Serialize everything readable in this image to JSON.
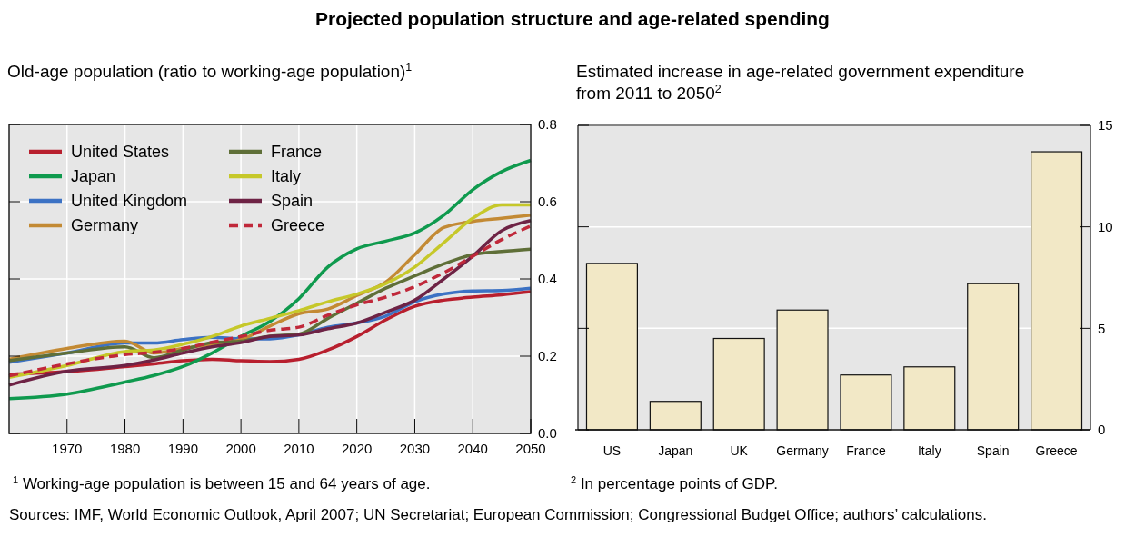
{
  "chart_data": [
    {
      "type": "line",
      "title": "Projected population structure and age-related spending",
      "subtitle": "Old-age population (ratio to working-age population)$^{1}$",
      "x": [
        1960,
        1970,
        1980,
        1985,
        1990,
        1995,
        2000,
        2005,
        2010,
        2015,
        2020,
        2025,
        2030,
        2035,
        2040,
        2045,
        2050
      ],
      "xlim": [
        1960,
        2050
      ],
      "xticks": [
        1970,
        1980,
        1990,
        2000,
        2010,
        2020,
        2030,
        2040,
        2050
      ],
      "ylim": [
        0,
        0.8
      ],
      "yticks": [
        {
          "value": 0,
          "label": "0.0"
        },
        0.2,
        0.4,
        0.6,
        0.8
      ],
      "grid": true,
      "legend": "top left",
      "annotations": [
        "$^{1}$ Working-age population is between 15 and 64 years of age.",
        "Sources: IMF, World Economic Outlook, April 2007; UN Secretariat; European Commission; Congressional Budget Office; authors’ calculations."
      ],
      "series": [
        {
          "name": "United States",
          "color": "#b81f2e",
          "values": [
            0.153,
            0.16,
            0.173,
            0.18,
            0.188,
            0.192,
            0.188,
            0.186,
            0.192,
            0.216,
            0.251,
            0.294,
            0.329,
            0.345,
            0.353,
            0.359,
            0.367
          ]
        },
        {
          "name": "Japan",
          "color": "#0f9a4e",
          "values": [
            0.09,
            0.102,
            0.133,
            0.15,
            0.173,
            0.208,
            0.251,
            0.29,
            0.349,
            0.431,
            0.478,
            0.498,
            0.519,
            0.565,
            0.631,
            0.678,
            0.707
          ]
        },
        {
          "name": "United Kingdom",
          "color": "#3c72c4",
          "values": [
            0.184,
            0.208,
            0.234,
            0.234,
            0.243,
            0.249,
            0.245,
            0.245,
            0.255,
            0.275,
            0.286,
            0.304,
            0.341,
            0.361,
            0.369,
            0.37,
            0.376
          ]
        },
        {
          "name": "Germany",
          "color": "#c38a34",
          "values": [
            0.192,
            0.22,
            0.239,
            0.208,
            0.22,
            0.231,
            0.243,
            0.278,
            0.31,
            0.322,
            0.357,
            0.392,
            0.463,
            0.533,
            0.549,
            0.557,
            0.565
          ]
        },
        {
          "name": "France",
          "color": "#5f6f38",
          "values": [
            0.188,
            0.208,
            0.224,
            0.196,
            0.216,
            0.235,
            0.239,
            0.252,
            0.257,
            0.298,
            0.337,
            0.376,
            0.408,
            0.439,
            0.463,
            0.471,
            0.477
          ]
        },
        {
          "name": "Italy",
          "color": "#c6c82a",
          "values": [
            0.145,
            0.176,
            0.212,
            0.216,
            0.231,
            0.251,
            0.278,
            0.298,
            0.318,
            0.341,
            0.361,
            0.388,
            0.431,
            0.494,
            0.557,
            0.592,
            0.592
          ]
        },
        {
          "name": "Spain",
          "color": "#6e2345",
          "values": [
            0.125,
            0.161,
            0.176,
            0.19,
            0.208,
            0.224,
            0.235,
            0.251,
            0.255,
            0.271,
            0.286,
            0.314,
            0.345,
            0.4,
            0.459,
            0.525,
            0.551
          ]
        },
        {
          "name": "Greece",
          "color": "#c0283a",
          "line_style": "dashed",
          "values": [
            0.149,
            0.18,
            0.204,
            0.21,
            0.22,
            0.236,
            0.251,
            0.267,
            0.275,
            0.306,
            0.333,
            0.353,
            0.38,
            0.416,
            0.459,
            0.502,
            0.537
          ]
        }
      ]
    },
    {
      "type": "bar",
      "subtitle": "Estimated increase in age-related government expenditure from 2011 to 2050$^{2}$",
      "categories": [
        "US",
        "Japan",
        "UK",
        "Germany",
        "France",
        "Italy",
        "Spain",
        "Greece"
      ],
      "values": [
        8.2,
        1.4,
        4.5,
        5.9,
        2.7,
        3.1,
        7.2,
        13.7
      ],
      "color": "#f2e8c6",
      "ylim": [
        0,
        15
      ],
      "yticks": [
        0,
        5,
        10,
        15
      ],
      "grid": "y",
      "annotations": [
        "$^{2}$ In percentage points of GDP."
      ]
    }
  ]
}
